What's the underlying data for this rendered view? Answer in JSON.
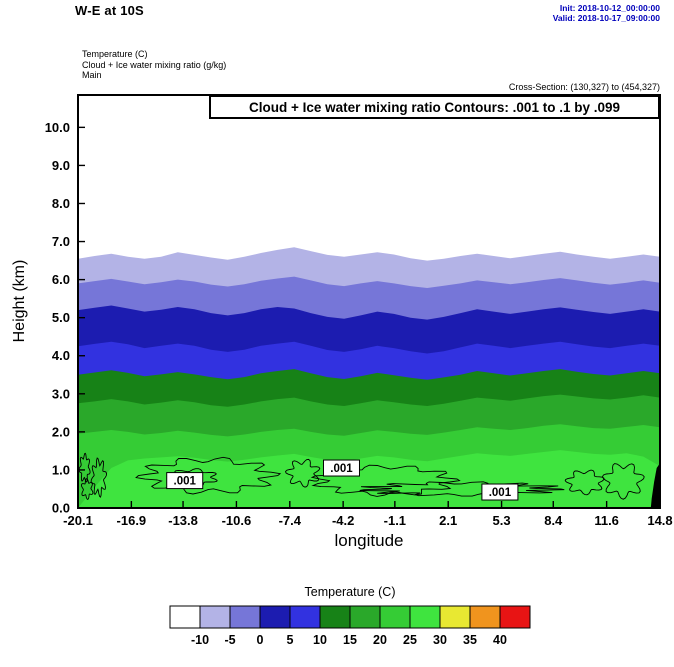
{
  "header": {
    "title": "W-E at 10S",
    "init_line": "Init: 2018-10-12_00:00:00",
    "valid_line": "Valid: 2018-10-17_09:00:00",
    "field_line_1": "Temperature  (C)",
    "field_line_2": "Cloud + Ice water mixing ratio  (g/kg)",
    "field_line_3": "Main",
    "cross_section": "Cross-Section: (130,327) to (454,327)",
    "accent_blue": "#0000bb"
  },
  "chart_data": {
    "type": "area",
    "subtype": "filled-contour-vertical-cross-section",
    "title_box": "Cloud + Ice water mixing ratio Contours: .001 to .1 by .099",
    "xlabel": "longitude",
    "ylabel": "Height (km)",
    "xlim": [
      -20.1,
      14.8
    ],
    "ylim": [
      0,
      10.85
    ],
    "x_ticks": [
      -20.1,
      -16.9,
      -13.8,
      -10.6,
      -7.4,
      -4.2,
      -1.1,
      2.1,
      5.3,
      8.4,
      11.6,
      14.8
    ],
    "x_tick_labels": [
      "-20.1",
      "-16.9",
      "-13.8",
      "-10.6",
      "-7.4",
      "-4.2",
      "-1.1",
      "2.1",
      "5.3",
      "8.4",
      "11.6",
      "14.8"
    ],
    "y_ticks": [
      0,
      1,
      2,
      3,
      4,
      5,
      6,
      7,
      8,
      9,
      10
    ],
    "y_tick_labels": [
      "0.0",
      "1.0",
      "2.0",
      "3.0",
      "4.0",
      "5.0",
      "6.0",
      "7.0",
      "8.0",
      "9.0",
      "10.0"
    ],
    "grid": false,
    "temp_boundaries": [
      {
        "level": -10,
        "heights": [
          6.55,
          6.62,
          6.68,
          6.6,
          6.55,
          6.6,
          6.72,
          6.65,
          6.58,
          6.52,
          6.6,
          6.7,
          6.78,
          6.85,
          6.75,
          6.65,
          6.6,
          6.66,
          6.72,
          6.66,
          6.56,
          6.5,
          6.55,
          6.62,
          6.68,
          6.62,
          6.56,
          6.62,
          6.68,
          6.73,
          6.66,
          6.6,
          6.55,
          6.6,
          6.66,
          6.6
        ]
      },
      {
        "level": -5,
        "heights": [
          5.9,
          5.96,
          6.02,
          5.95,
          5.88,
          5.93,
          6.0,
          5.95,
          5.87,
          5.82,
          5.88,
          5.97,
          6.03,
          6.08,
          5.98,
          5.88,
          5.83,
          5.9,
          5.96,
          5.9,
          5.83,
          5.78,
          5.84,
          5.9,
          5.98,
          5.93,
          5.88,
          5.93,
          5.99,
          6.04,
          5.98,
          5.92,
          5.87,
          5.92,
          5.98,
          5.92
        ]
      },
      {
        "level": 0,
        "heights": [
          5.2,
          5.26,
          5.32,
          5.24,
          5.16,
          5.21,
          5.28,
          5.22,
          5.12,
          5.06,
          5.12,
          5.22,
          5.28,
          5.24,
          5.12,
          5.02,
          4.97,
          5.06,
          5.16,
          5.1,
          5.0,
          4.95,
          5.02,
          5.12,
          5.22,
          5.16,
          5.1,
          5.16,
          5.22,
          5.27,
          5.21,
          5.15,
          5.1,
          5.16,
          5.22,
          5.16
        ]
      },
      {
        "level": 5,
        "heights": [
          4.25,
          4.31,
          4.37,
          4.3,
          4.2,
          4.26,
          4.32,
          4.26,
          4.16,
          4.1,
          4.16,
          4.26,
          4.32,
          4.37,
          4.26,
          4.15,
          4.1,
          4.17,
          4.26,
          4.2,
          4.12,
          4.06,
          4.12,
          4.22,
          4.32,
          4.26,
          4.2,
          4.26,
          4.32,
          4.37,
          4.3,
          4.24,
          4.2,
          4.26,
          4.32,
          4.26
        ]
      },
      {
        "level": 10,
        "heights": [
          3.5,
          3.56,
          3.62,
          3.55,
          3.46,
          3.51,
          3.57,
          3.51,
          3.44,
          3.38,
          3.44,
          3.54,
          3.6,
          3.65,
          3.54,
          3.44,
          3.39,
          3.46,
          3.55,
          3.49,
          3.42,
          3.37,
          3.43,
          3.5,
          3.6,
          3.54,
          3.48,
          3.54,
          3.6,
          3.65,
          3.58,
          3.52,
          3.48,
          3.54,
          3.6,
          3.54
        ]
      },
      {
        "level": 15,
        "heights": [
          2.75,
          2.8,
          2.86,
          2.8,
          2.72,
          2.77,
          2.83,
          2.78,
          2.7,
          2.66,
          2.72,
          2.8,
          2.86,
          2.9,
          2.8,
          2.72,
          2.68,
          2.75,
          2.83,
          2.78,
          2.72,
          2.68,
          2.74,
          2.82,
          2.9,
          2.86,
          2.82,
          2.88,
          2.94,
          2.98,
          2.93,
          2.88,
          2.85,
          2.9,
          2.96,
          2.9
        ]
      },
      {
        "level": 20,
        "heights": [
          1.95,
          2.0,
          2.05,
          2.0,
          1.93,
          1.97,
          2.03,
          1.98,
          1.92,
          1.88,
          1.93,
          2.0,
          2.05,
          2.08,
          2.0,
          1.93,
          1.9,
          1.97,
          2.04,
          2.0,
          1.95,
          1.92,
          1.98,
          2.05,
          2.12,
          2.08,
          2.05,
          2.1,
          2.16,
          2.2,
          2.15,
          2.1,
          2.08,
          2.13,
          2.18,
          2.12
        ]
      },
      {
        "level": 25,
        "heights": [
          0.0,
          0.55,
          1.05,
          1.25,
          1.3,
          1.33,
          1.36,
          1.32,
          1.26,
          1.22,
          1.27,
          1.33,
          1.38,
          1.42,
          1.34,
          1.27,
          1.23,
          1.3,
          1.37,
          1.33,
          1.27,
          1.23,
          1.3,
          1.37,
          1.44,
          1.4,
          1.37,
          1.42,
          1.47,
          1.52,
          1.47,
          1.42,
          1.4,
          1.44,
          1.35,
          1.1
        ]
      }
    ],
    "terrain": {
      "points": [
        [
          14.25,
          0
        ],
        [
          14.8,
          0
        ],
        [
          14.8,
          1.18
        ],
        [
          14.6,
          1.05
        ],
        [
          14.45,
          0.7
        ],
        [
          14.3,
          0.25
        ]
      ],
      "color": "#000000"
    },
    "cloud_contours": {
      "interval_note": ".001 to .1 by .099",
      "blobs": [
        [
          -19.7,
          1.05,
          0.28,
          0.32,
          7,
          0.22
        ],
        [
          -19.55,
          0.5,
          0.3,
          0.22,
          6,
          0.25
        ],
        [
          -18.85,
          0.8,
          0.38,
          0.42,
          8,
          0.25
        ],
        [
          -12.3,
          0.85,
          3.7,
          0.42,
          10,
          0.18
        ],
        [
          -13.2,
          0.8,
          1.3,
          0.2,
          7,
          0.2
        ],
        [
          -6.6,
          0.92,
          0.85,
          0.3,
          7,
          0.25
        ],
        [
          -1.7,
          0.72,
          3.9,
          0.36,
          11,
          0.16
        ],
        [
          2.9,
          0.5,
          5.2,
          0.16,
          13,
          0.22
        ],
        [
          10.3,
          0.68,
          1.0,
          0.28,
          7,
          0.2
        ],
        [
          12.6,
          0.72,
          1.05,
          0.4,
          7,
          0.22
        ]
      ],
      "labels": [
        {
          "text": ".001",
          "x": -13.7,
          "h": 0.72
        },
        {
          "text": ".001",
          "x": -4.3,
          "h": 1.05
        },
        {
          "text": ".001",
          "x": 5.2,
          "h": 0.42
        }
      ]
    },
    "legend": {
      "title": "Temperature  (C)",
      "colors": [
        "#ffffff",
        "#b3b3e6",
        "#7676d8",
        "#1c1cb0",
        "#3232e0",
        "#178217",
        "#2aa82a",
        "#35cc35",
        "#3fe43f",
        "#e8e832",
        "#f0941e",
        "#e81414"
      ],
      "labels": [
        "-10",
        "-5",
        "0",
        "5",
        "10",
        "15",
        "20",
        "25",
        "30",
        "35",
        "40"
      ],
      "position": "bottom"
    }
  }
}
